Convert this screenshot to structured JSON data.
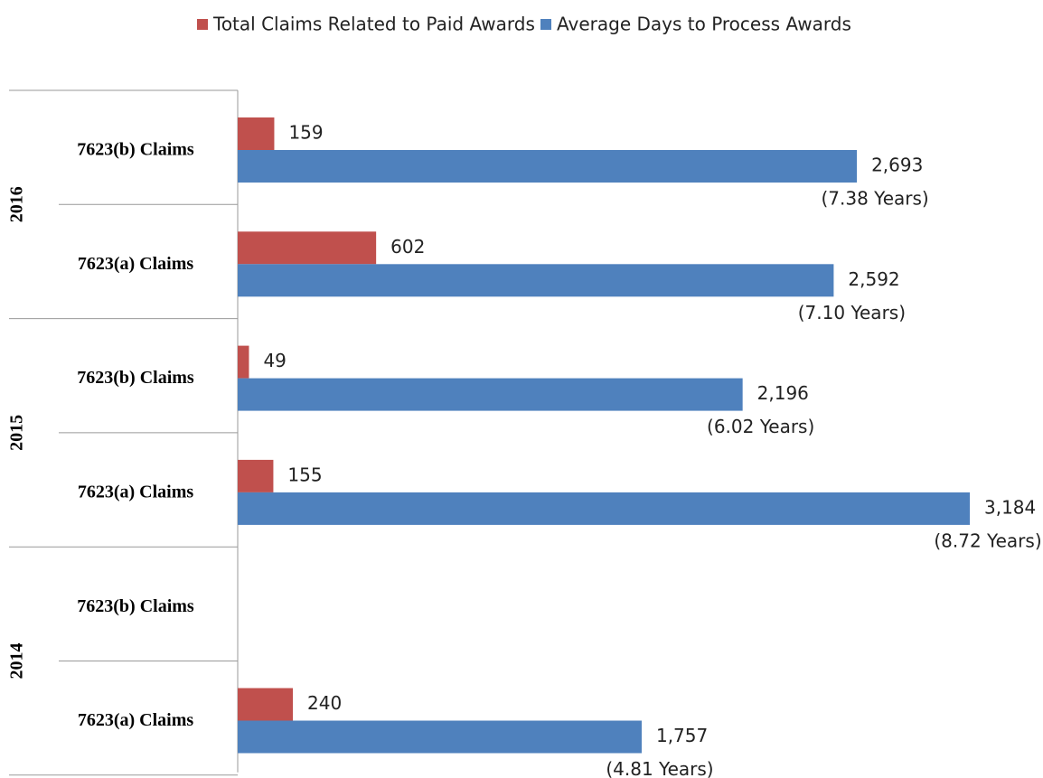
{
  "chart_data": {
    "type": "bar",
    "orientation": "horizontal",
    "groups": [
      "2016",
      "2015",
      "2014"
    ],
    "categories": [
      "7623(b) Claims",
      "7623(a) Claims",
      "7623(b) Claims",
      "7623(a) Claims",
      "7623(b) Claims",
      "7623(a) Claims"
    ],
    "series": [
      {
        "name": "Total Claims Related to Paid Awards",
        "color": "#c0504d",
        "values": [
          159,
          602,
          49,
          155,
          null,
          240
        ],
        "value_labels": [
          "159",
          "602",
          "49",
          "155",
          null,
          "240"
        ]
      },
      {
        "name": "Average Days to Process Awards",
        "color": "#4f81bd",
        "values": [
          2693,
          2592,
          2196,
          3184,
          null,
          1757
        ],
        "value_labels": [
          "2,693",
          "2,592",
          "2,196",
          "3,184",
          null,
          "1,757"
        ],
        "annotations": [
          "(7.38 Years)",
          "(7.10 Years)",
          "(6.02 Years)",
          "(8.72 Years)",
          null,
          "(4.81 Years)"
        ]
      }
    ],
    "legend": "top"
  }
}
